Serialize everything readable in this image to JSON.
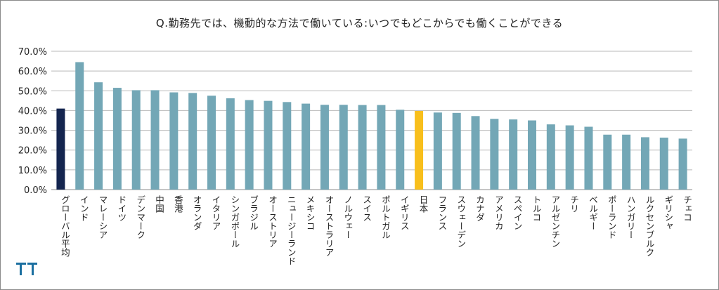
{
  "chart_data": {
    "type": "bar",
    "title": "Q.勤務先では、機動的な方法で働いている:いつでもどこからでも働くことができる",
    "ylim": [
      0,
      0.7
    ],
    "yticks": [
      "0.0%",
      "10.0%",
      "20.0%",
      "30.0%",
      "40.0%",
      "50.0%",
      "60.0%",
      "70.0%"
    ],
    "grid": true,
    "categories": [
      "グローバル平均",
      "インド",
      "マレーシア",
      "ドイツ",
      "デンマーク",
      "中国",
      "香港",
      "オランダ",
      "イタリア",
      "シンガポール",
      "ブラジル",
      "オーストリア",
      "ニュージーランド",
      "メキシコ",
      "オーストラリア",
      "ノルウェー",
      "スイス",
      "ポルトガル",
      "イギリス",
      "日本",
      "フランス",
      "スウェーデン",
      "カナダ",
      "アメリカ",
      "スペイン",
      "トルコ",
      "アルゼンチン",
      "チリ",
      "ベルギー",
      "ポーランド",
      "ハンガリー",
      "ルクセンブルク",
      "ギリシャ",
      "チェコ"
    ],
    "values": [
      0.41,
      0.645,
      0.543,
      0.515,
      0.503,
      0.503,
      0.492,
      0.489,
      0.475,
      0.462,
      0.453,
      0.449,
      0.443,
      0.435,
      0.429,
      0.429,
      0.428,
      0.428,
      0.404,
      0.398,
      0.39,
      0.388,
      0.372,
      0.358,
      0.355,
      0.35,
      0.33,
      0.325,
      0.318,
      0.278,
      0.278,
      0.265,
      0.263,
      0.258
    ],
    "highlight": {
      "グローバル平均": "#14254f",
      "日本": "#f8bf1c"
    }
  },
  "colors": {
    "bar": "#73a7b6",
    "global": "#14254f",
    "japan": "#f8bf1c",
    "grid": "#b9b9b9",
    "logo": "#1b6fa0"
  },
  "logo": {
    "icon": "company-logo-icon"
  }
}
